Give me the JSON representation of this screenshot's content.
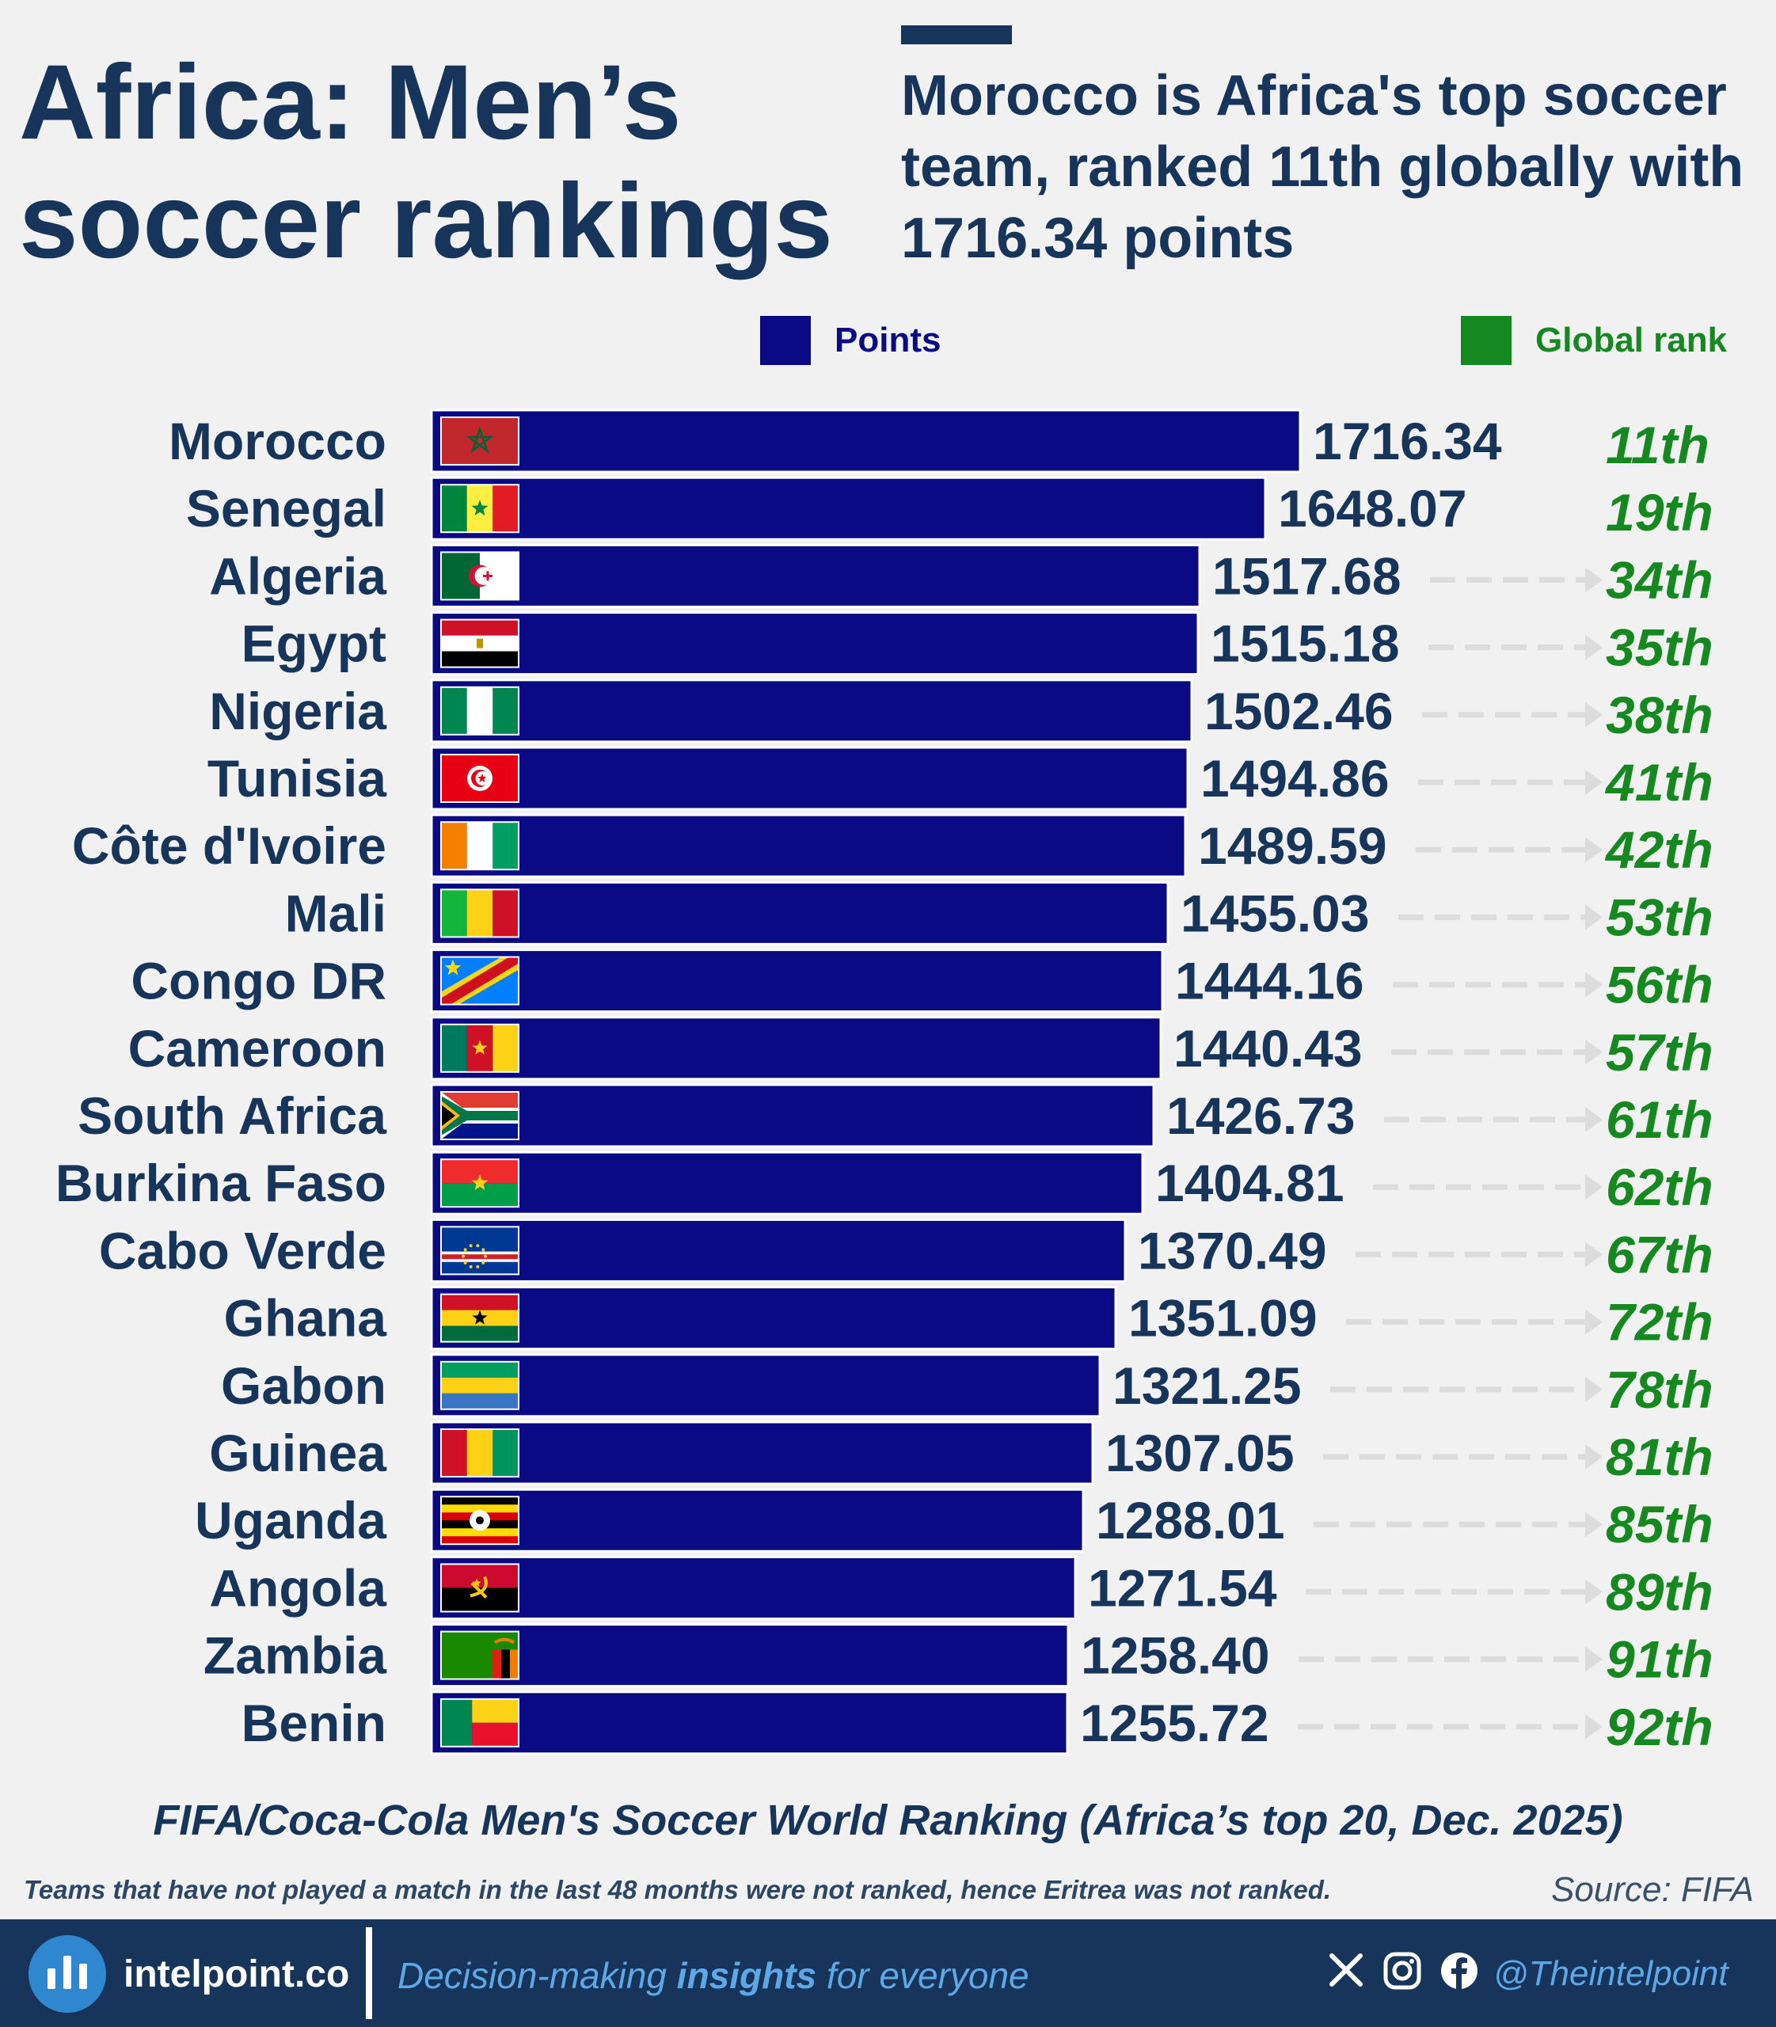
{
  "header": {
    "title": "Africa: Men’s soccer rankings",
    "subtitle": "Morocco is Africa's top soccer team, ranked 11th globally with 1716.34 points"
  },
  "legend": {
    "points_label": "Points",
    "rank_label": "Global rank"
  },
  "colors": {
    "bar": "#0a0a85",
    "rank": "#15891f",
    "title": "#17355a",
    "arrow": "#dcdcdc"
  },
  "chart_data": {
    "type": "bar",
    "orientation": "horizontal",
    "categories": [
      "Morocco",
      "Senegal",
      "Algeria",
      "Egypt",
      "Nigeria",
      "Tunisia",
      "Côte d'Ivoire",
      "Mali",
      "Congo DR",
      "Cameroon",
      "South Africa",
      "Burkina Faso",
      "Cabo Verde",
      "Ghana",
      "Gabon",
      "Guinea",
      "Uganda",
      "Angola",
      "Zambia",
      "Benin"
    ],
    "series": [
      {
        "name": "Points",
        "values": [
          1716.34,
          1648.07,
          1517.68,
          1515.18,
          1502.46,
          1494.86,
          1489.59,
          1455.03,
          1444.16,
          1440.43,
          1426.73,
          1404.81,
          1370.49,
          1351.09,
          1321.25,
          1307.05,
          1288.01,
          1271.54,
          1258.4,
          1255.72
        ],
        "value_labels": [
          "1716.34",
          "1648.07",
          "1517.68",
          "1515.18",
          "1502.46",
          "1494.86",
          "1489.59",
          "1455.03",
          "1444.16",
          "1440.43",
          "1426.73",
          "1404.81",
          "1370.49",
          "1351.09",
          "1321.25",
          "1307.05",
          "1288.01",
          "1271.54",
          "1258.40",
          "1255.72"
        ]
      },
      {
        "name": "Global rank",
        "values": [
          "11th",
          "19th",
          "34th",
          "35th",
          "38th",
          "41st",
          "42nd",
          "53rd",
          "56th",
          "57th",
          "61st",
          "62nd",
          "67th",
          "72nd",
          "78th",
          "81st",
          "85th",
          "89th",
          "91st",
          "92nd"
        ],
        "labels": [
          "11th",
          "19th",
          "34th",
          "35th",
          "38th",
          "41th",
          "42th",
          "53th",
          "56th",
          "57th",
          "61th",
          "62th",
          "67th",
          "72th",
          "78th",
          "81th",
          "85th",
          "89th",
          "91th",
          "92th"
        ]
      }
    ],
    "flags": [
      "morocco",
      "senegal",
      "algeria",
      "egypt",
      "nigeria",
      "tunisia",
      "cote-divoire",
      "mali",
      "congo-dr",
      "cameroon",
      "south-africa",
      "burkina-faso",
      "cabo-verde",
      "ghana",
      "gabon",
      "guinea",
      "uganda",
      "angola",
      "zambia",
      "benin"
    ],
    "xlim": [
      0,
      1716.34
    ],
    "grid": false,
    "legend_position": "top"
  },
  "caption": "FIFA/Coca-Cola Men's Soccer World Ranking (Africa’s top 20, Dec. 2025)",
  "footnote": "Teams that have not played a match in the last 48 months were not ranked, hence Eritrea was not ranked.",
  "source": "Source: FIFA",
  "footer": {
    "brand": "intelpoint.co",
    "tagline_before": "Decision-making ",
    "tagline_bold": "insights",
    "tagline_after": " for everyone",
    "handle": "@Theintelpoint",
    "social_icons": [
      "x-icon",
      "instagram-icon",
      "facebook-icon"
    ]
  }
}
